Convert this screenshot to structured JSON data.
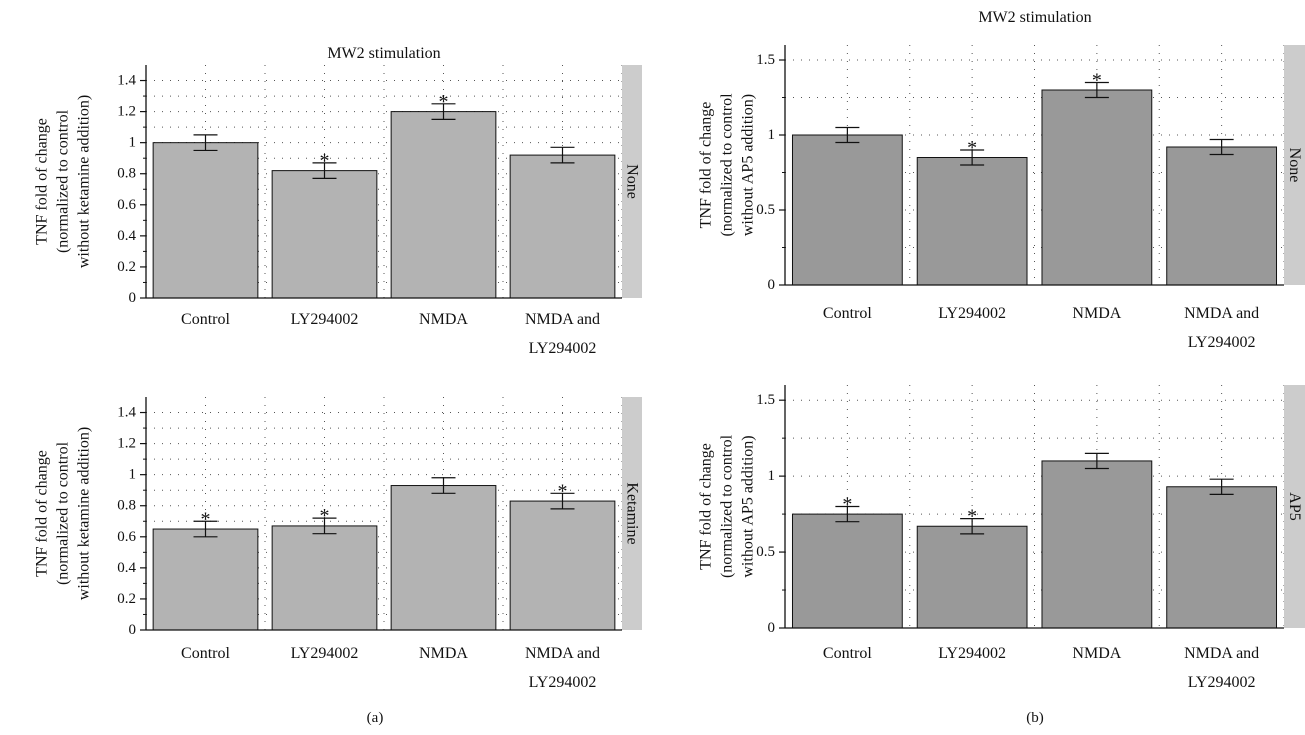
{
  "panel_labels": [
    "(a)",
    "(b)"
  ],
  "chart_data": [
    {
      "type": "bar",
      "title": "MW2 stimulation",
      "strip": "None",
      "ylabel": [
        "TNF fold of change",
        "(normalized to control",
        "without ketamine addition)"
      ],
      "categories": [
        [
          "Control"
        ],
        [
          "LY294002"
        ],
        [
          "NMDA"
        ],
        [
          "NMDA and",
          "LY294002"
        ]
      ],
      "values": [
        1.0,
        0.82,
        1.2,
        0.92
      ],
      "errors": [
        0.05,
        0.05,
        0.05,
        0.05
      ],
      "significant": [
        false,
        true,
        true,
        false
      ],
      "ylim": [
        0,
        1.5
      ],
      "yticks": [
        0,
        0.2,
        0.4,
        0.6,
        0.8,
        1,
        1.2,
        1.4
      ],
      "grid": true,
      "bar_color": "#b3b3b3"
    },
    {
      "type": "bar",
      "title": "",
      "strip": "Ketamine",
      "ylabel": [
        "TNF fold of change",
        "(normalized to control",
        "without ketamine addition)"
      ],
      "categories": [
        [
          "Control"
        ],
        [
          "LY294002"
        ],
        [
          "NMDA"
        ],
        [
          "NMDA and",
          "LY294002"
        ]
      ],
      "values": [
        0.65,
        0.67,
        0.93,
        0.83
      ],
      "errors": [
        0.05,
        0.05,
        0.05,
        0.05
      ],
      "significant": [
        true,
        true,
        false,
        true
      ],
      "ylim": [
        0,
        1.5
      ],
      "yticks": [
        0,
        0.2,
        0.4,
        0.6,
        0.8,
        1,
        1.2,
        1.4
      ],
      "grid": true,
      "bar_color": "#b3b3b3"
    },
    {
      "type": "bar",
      "title": "MW2 stimulation",
      "strip": "None",
      "ylabel": [
        "TNF fold of change",
        "(normalized to control",
        "without AP5 addition)"
      ],
      "categories": [
        [
          "Control"
        ],
        [
          "LY294002"
        ],
        [
          "NMDA"
        ],
        [
          "NMDA and",
          "LY294002"
        ]
      ],
      "values": [
        1.0,
        0.85,
        1.3,
        0.92
      ],
      "errors": [
        0.05,
        0.05,
        0.05,
        0.05
      ],
      "significant": [
        false,
        true,
        true,
        false
      ],
      "ylim": [
        0,
        1.6
      ],
      "yticks": [
        0,
        0.5,
        1,
        1.5
      ],
      "grid": true,
      "bar_color": "#999999"
    },
    {
      "type": "bar",
      "title": "",
      "strip": "AP5",
      "ylabel": [
        "TNF fold of change",
        "(normalized to control",
        "without AP5 addition)"
      ],
      "categories": [
        [
          "Control"
        ],
        [
          "LY294002"
        ],
        [
          "NMDA"
        ],
        [
          "NMDA and",
          "LY294002"
        ]
      ],
      "values": [
        0.75,
        0.67,
        1.1,
        0.93
      ],
      "errors": [
        0.05,
        0.05,
        0.05,
        0.05
      ],
      "significant": [
        true,
        true,
        false,
        false
      ],
      "ylim": [
        0,
        1.6
      ],
      "yticks": [
        0,
        0.5,
        1,
        1.5
      ],
      "grid": true,
      "bar_color": "#999999"
    }
  ]
}
